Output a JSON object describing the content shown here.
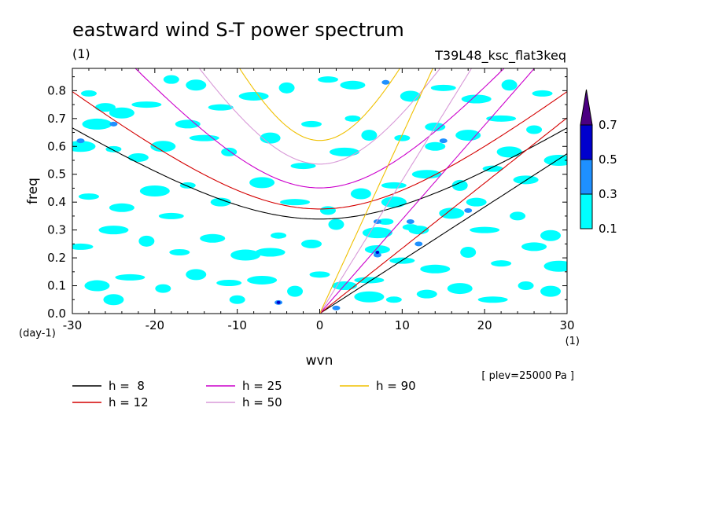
{
  "chart_data": {
    "type": "heatmap",
    "title": "eastward wind S-T power spectrum",
    "subtitle_left": "(1)",
    "subtitle_right": "T39L48_ksc_flat3keq",
    "xlabel": "wvn",
    "ylabel": "freq",
    "x_unit": "(1)",
    "y_unit": "(day-1)",
    "annotation": "[ plev=25000 Pa ]",
    "xlim": [
      -30,
      30
    ],
    "ylim": [
      0.0,
      0.88
    ],
    "x_ticks": [
      "-30",
      "-20",
      "-10",
      "0",
      "10",
      "20",
      "30"
    ],
    "x_tick_values": [
      -30,
      -20,
      -10,
      0,
      10,
      20,
      30
    ],
    "y_ticks": [
      "0.0",
      "0.1",
      "0.2",
      "0.3",
      "0.4",
      "0.5",
      "0.6",
      "0.7",
      "0.8"
    ],
    "y_tick_values": [
      0.0,
      0.1,
      0.2,
      0.3,
      0.4,
      0.5,
      0.6,
      0.7,
      0.8
    ],
    "colorbar": {
      "levels": [
        "0.1",
        "0.3",
        "0.5",
        "0.7"
      ],
      "colors": [
        "#00ffff",
        "#1e90ff",
        "#0000cd",
        "#4b0082"
      ]
    },
    "series": [
      {
        "name": "h =  8",
        "color": "#000000"
      },
      {
        "name": "h = 12",
        "color": "#d40000"
      },
      {
        "name": "h = 25",
        "color": "#cc00cc"
      },
      {
        "name": "h = 50",
        "color": "#d89ad8"
      },
      {
        "name": "h = 90",
        "color": "#f0c000"
      }
    ],
    "blobs_cyan": [
      [
        -28,
        0.79
      ],
      [
        -26,
        0.74
      ],
      [
        -24,
        0.72
      ],
      [
        -21,
        0.75
      ],
      [
        -18,
        0.84
      ],
      [
        -15,
        0.82
      ],
      [
        -12,
        0.74
      ],
      [
        -8,
        0.78
      ],
      [
        -4,
        0.81
      ],
      [
        1,
        0.84
      ],
      [
        4,
        0.82
      ],
      [
        -29,
        0.6
      ],
      [
        -25,
        0.59
      ],
      [
        -22,
        0.56
      ],
      [
        -19,
        0.6
      ],
      [
        -14,
        0.63
      ],
      [
        -11,
        0.58
      ],
      [
        -6,
        0.63
      ],
      [
        -2,
        0.53
      ],
      [
        3,
        0.58
      ],
      [
        6,
        0.64
      ],
      [
        -28,
        0.42
      ],
      [
        -24,
        0.38
      ],
      [
        -20,
        0.44
      ],
      [
        -16,
        0.46
      ],
      [
        -12,
        0.4
      ],
      [
        -7,
        0.47
      ],
      [
        -3,
        0.4
      ],
      [
        1,
        0.37
      ],
      [
        5,
        0.43
      ],
      [
        -29,
        0.24
      ],
      [
        -25,
        0.3
      ],
      [
        -21,
        0.26
      ],
      [
        -17,
        0.22
      ],
      [
        -13,
        0.27
      ],
      [
        -9,
        0.21
      ],
      [
        -5,
        0.28
      ],
      [
        -1,
        0.25
      ],
      [
        -27,
        0.1
      ],
      [
        -23,
        0.13
      ],
      [
        -19,
        0.09
      ],
      [
        -15,
        0.14
      ],
      [
        -11,
        0.11
      ],
      [
        -7,
        0.12
      ],
      [
        -3,
        0.08
      ],
      [
        0,
        0.14
      ],
      [
        3,
        0.1
      ],
      [
        6,
        0.06
      ],
      [
        9,
        0.05
      ],
      [
        13,
        0.07
      ],
      [
        17,
        0.09
      ],
      [
        21,
        0.05
      ],
      [
        25,
        0.1
      ],
      [
        28,
        0.08
      ],
      [
        10,
        0.19
      ],
      [
        14,
        0.16
      ],
      [
        18,
        0.22
      ],
      [
        22,
        0.18
      ],
      [
        26,
        0.24
      ],
      [
        29,
        0.17
      ],
      [
        8,
        0.33
      ],
      [
        12,
        0.3
      ],
      [
        16,
        0.36
      ],
      [
        20,
        0.3
      ],
      [
        24,
        0.35
      ],
      [
        28,
        0.28
      ],
      [
        9,
        0.46
      ],
      [
        13,
        0.5
      ],
      [
        17,
        0.46
      ],
      [
        21,
        0.52
      ],
      [
        25,
        0.48
      ],
      [
        29,
        0.55
      ],
      [
        10,
        0.63
      ],
      [
        14,
        0.67
      ],
      [
        18,
        0.64
      ],
      [
        22,
        0.7
      ],
      [
        26,
        0.66
      ],
      [
        11,
        0.78
      ],
      [
        15,
        0.81
      ],
      [
        19,
        0.77
      ],
      [
        23,
        0.82
      ],
      [
        27,
        0.79
      ],
      [
        7,
        0.23
      ],
      [
        7,
        0.29
      ],
      [
        11,
        0.31
      ],
      [
        14,
        0.6
      ],
      [
        9,
        0.4
      ],
      [
        6,
        0.12
      ],
      [
        -10,
        0.05
      ],
      [
        -25,
        0.05
      ],
      [
        -18,
        0.35
      ],
      [
        -6,
        0.22
      ],
      [
        2,
        0.32
      ],
      [
        -1,
        0.68
      ],
      [
        -16,
        0.68
      ],
      [
        -27,
        0.68
      ],
      [
        4,
        0.7
      ],
      [
        19,
        0.4
      ],
      [
        23,
        0.58
      ]
    ],
    "blobs_blue": [
      [
        7,
        0.21
      ],
      [
        7,
        0.33
      ],
      [
        11,
        0.33
      ],
      [
        18,
        0.37
      ],
      [
        -5,
        0.04
      ],
      [
        8,
        0.83
      ],
      [
        -25,
        0.68
      ],
      [
        12,
        0.25
      ],
      [
        -29,
        0.62
      ],
      [
        15,
        0.62
      ],
      [
        2,
        0.02
      ]
    ],
    "blobs_navy": [
      [
        7,
        0.22
      ],
      [
        -5,
        0.04
      ]
    ]
  }
}
